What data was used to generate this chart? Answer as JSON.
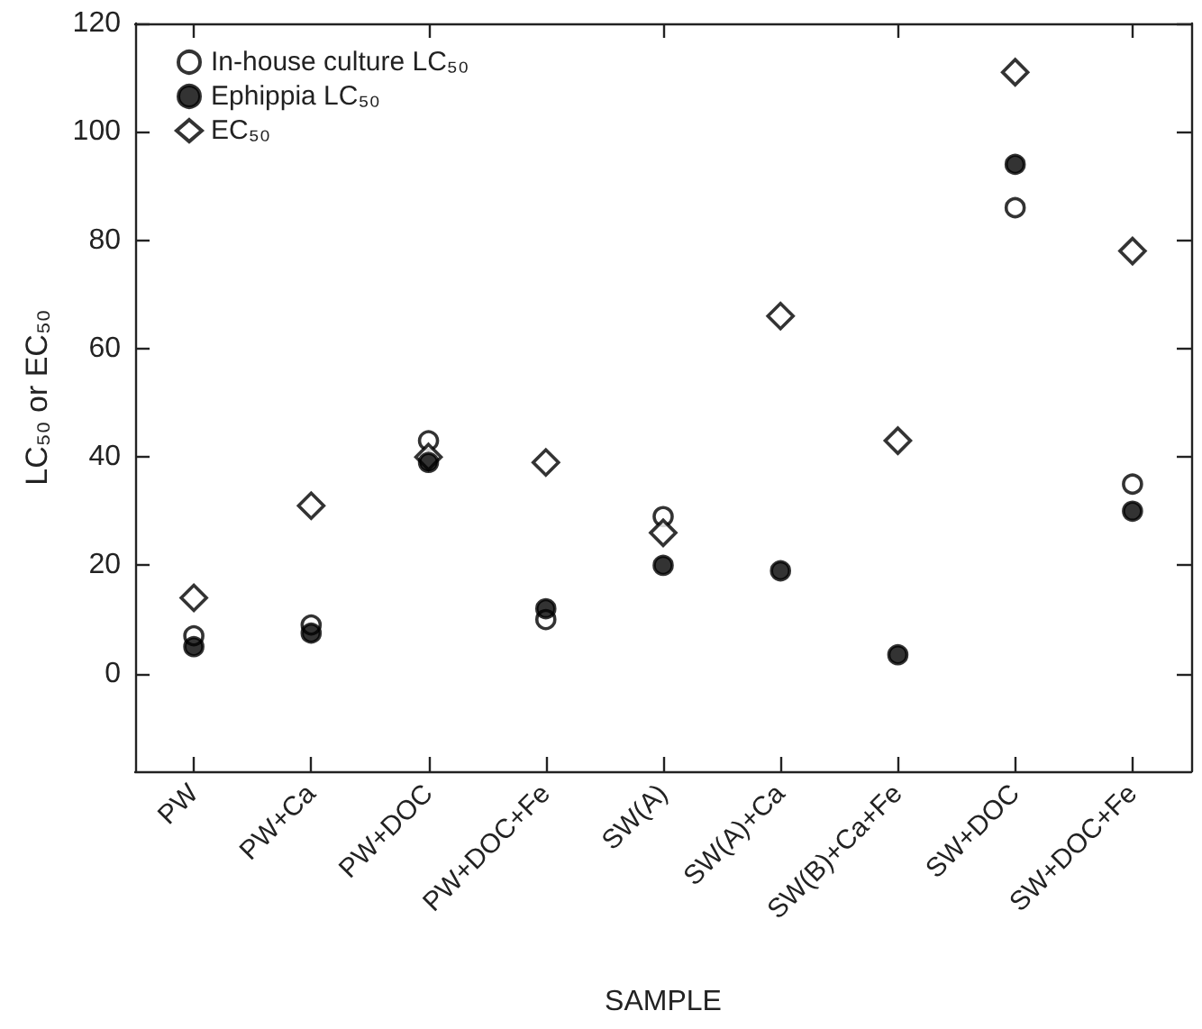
{
  "chart_data": {
    "type": "scatter",
    "xlabel": "SAMPLE",
    "ylabel": "LC₅₀ or EC₅₀",
    "categories": [
      "PW",
      "PW+Ca",
      "PW+DOC",
      "PW+DOC+Fe",
      "SW(A)",
      "SW(A)+Ca",
      "SW(B)+Ca+Fe",
      "SW+DOC",
      "SW+DOC+Fe"
    ],
    "series": [
      {
        "name": "In-house culture LC₅₀",
        "color": "#000000",
        "marker": "circle",
        "values": [
          7,
          9,
          43,
          10,
          29,
          null,
          null,
          86,
          35
        ]
      },
      {
        "name": "Ephippia LC₅₀",
        "color": "#000000",
        "marker": "circle",
        "values": [
          5,
          7.5,
          39,
          12,
          20,
          19,
          3.5,
          94,
          30
        ]
      },
      {
        "name": "EC₅₀",
        "color": "#000000",
        "marker": "diamond",
        "values": [
          14,
          31,
          40,
          39,
          26,
          66,
          43,
          111,
          78
        ]
      }
    ],
    "ylim": [
      -18,
      120
    ],
    "yticks": [
      0,
      20,
      40,
      60,
      80,
      100,
      120
    ],
    "grid": false,
    "legend": "top left"
  }
}
